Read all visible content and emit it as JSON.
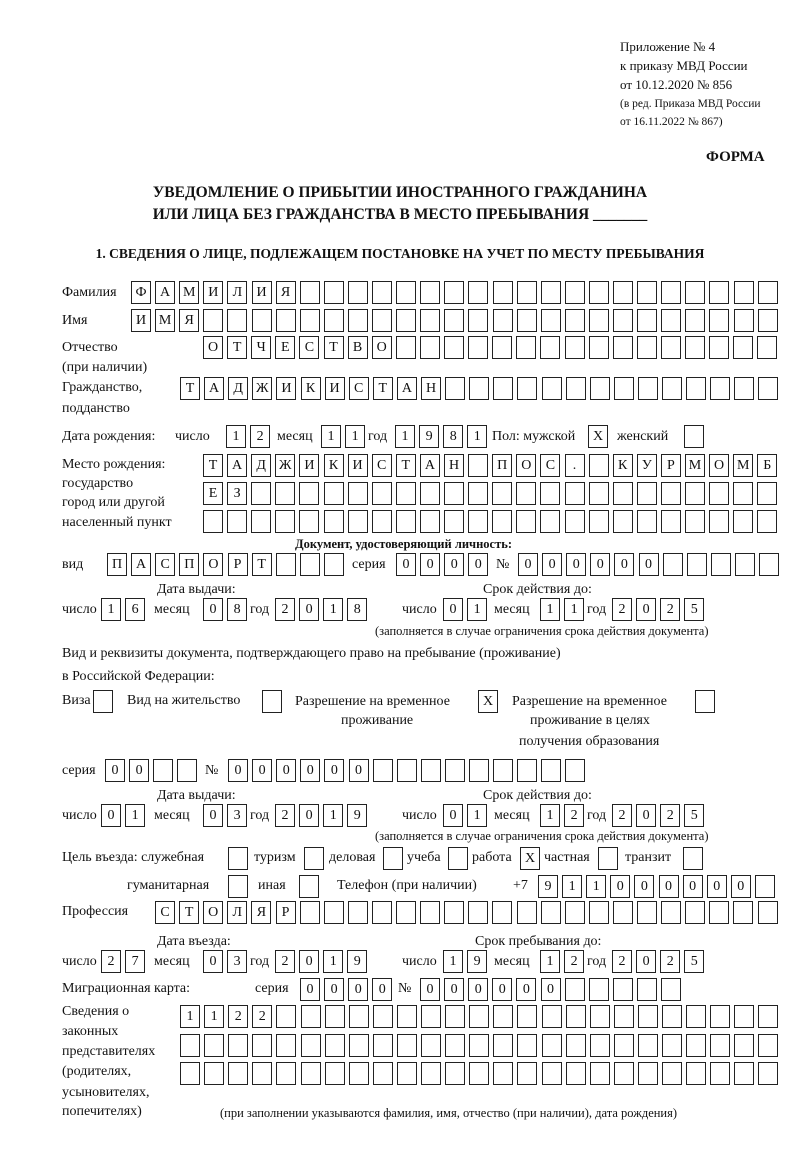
{
  "header": {
    "line1": "Приложение № 4",
    "line2": "к приказу МВД России",
    "line3": "от 10.12.2020 № 856",
    "line4": "(в ред. Приказа МВД России",
    "line5": "от 16.11.2022 № 867)",
    "form_label": "ФОРМА"
  },
  "title": {
    "line1": "УВЕДОМЛЕНИЕ О ПРИБЫТИИ ИНОСТРАННОГО ГРАЖДАНИНА",
    "line2": "ИЛИ ЛИЦА БЕЗ ГРАЖДАНСТВА В МЕСТО ПРЕБЫВАНИЯ _______"
  },
  "section1": {
    "heading": "1. СВЕДЕНИЯ О ЛИЦЕ, ПОДЛЕЖАЩЕМ ПОСТАНОВКЕ НА УЧЕТ ПО МЕСТУ ПРЕБЫВАНИЯ",
    "surname": {
      "label": "Фамилия",
      "value": "ФАМИЛИЯ"
    },
    "name": {
      "label": "Имя",
      "value": "ИМЯ"
    },
    "patronymic": {
      "label": "Отчество",
      "label2": "(при наличии)",
      "value": "ОТЧЕСТВО"
    },
    "citizenship": {
      "label": "Гражданство,",
      "label2": "подданство",
      "value": "ТАДЖИКИСТАН"
    },
    "birth_date": {
      "label": "Дата рождения:",
      "day_label": "число",
      "day": "12",
      "month_label": "месяц",
      "month": "11",
      "year_label": "год",
      "year": "1981"
    },
    "sex": {
      "label": "Пол: мужской",
      "male": "X",
      "female_label": "женский",
      "female": ""
    },
    "birth_place": {
      "label1": "Место рождения:",
      "label2": "государство",
      "label3": "город или другой",
      "label4": "населенный пункт",
      "row1": "ТАДЖИКИСТАН ПОС. КУРМОМБ",
      "row2": "ЕЗ",
      "row3": ""
    },
    "id_document": {
      "heading": "Документ, удостоверяющий личность:",
      "type_label": "вид",
      "type": "ПАСПОРТ",
      "series_label": "серия",
      "series": "0000",
      "number_label": "№",
      "number": "000000",
      "issue_label": "Дата выдачи:",
      "issue": {
        "day_label": "число",
        "day": "16",
        "month_label": "месяц",
        "month": "08",
        "year_label": "год",
        "year": "2018"
      },
      "valid_label": "Срок действия до:",
      "valid": {
        "day_label": "число",
        "day": "01",
        "month_label": "месяц",
        "month": "11",
        "year_label": "год",
        "year": "2025"
      },
      "note": "(заполняется в случае ограничения срока действия документа)"
    },
    "residence_document": {
      "label1": "Вид и реквизиты документа, подтверждающего право на пребывание (проживание)",
      "label2": "в Российской Федерации:",
      "visa_label": "Виза",
      "visa": "",
      "residence_permit_label": "Вид на жительство",
      "residence_permit": "",
      "temp_permit_label1": "Разрешение на временное",
      "temp_permit_label2": "проживание",
      "temp_permit": "X",
      "edu_permit_label1": "Разрешение на временное",
      "edu_permit_label2": "проживание в целях",
      "edu_permit_label3": "получения образования",
      "edu_permit": "",
      "series_label": "серия",
      "series": "00",
      "number_label": "№",
      "number": "000000",
      "issue_label": "Дата выдачи:",
      "issue": {
        "day_label": "число",
        "day": "01",
        "month_label": "месяц",
        "month": "03",
        "year_label": "год",
        "year": "2019"
      },
      "valid_label": "Срок действия до:",
      "valid": {
        "day_label": "число",
        "day": "01",
        "month_label": "месяц",
        "month": "12",
        "year_label": "год",
        "year": "2025"
      },
      "note": "(заполняется в случае ограничения срока действия документа)"
    },
    "purpose": {
      "label": "Цель въезда: служебная",
      "official": "",
      "tourism_label": "туризм",
      "tourism": "",
      "business_label": "деловая",
      "business": "",
      "study_label": "учеба",
      "study": "",
      "work_label": "работа",
      "work": "X",
      "private_label": "частная",
      "private": "",
      "transit_label": "транзит",
      "transit": "",
      "humanitarian_label": "гуманитарная",
      "humanitarian": "",
      "other_label": "иная",
      "other": ""
    },
    "phone": {
      "label": "Телефон (при наличии)",
      "prefix": "+7",
      "value": "911000000"
    },
    "profession": {
      "label": "Профессия",
      "value": "СТОЛЯР"
    },
    "entry": {
      "label": "Дата въезда:",
      "day_label": "число",
      "day": "27",
      "month_label": "месяц",
      "month": "03",
      "year_label": "год",
      "year": "2019"
    },
    "stay_until": {
      "label": "Срок пребывания до:",
      "day_label": "число",
      "day": "19",
      "month_label": "месяц",
      "month": "12",
      "year_label": "год",
      "year": "2025"
    },
    "migration_card": {
      "label": "Миграционная карта:",
      "series_label": "серия",
      "series": "0000",
      "number_label": "№",
      "number": "000000"
    },
    "legal_reps": {
      "label1": "Сведения о",
      "label2": "законных",
      "label3": "представителях",
      "label4": "(родителях,",
      "label5": "усыновителях,",
      "label6": "попечителях)",
      "row1": "1122",
      "row2": "",
      "row3": "",
      "note": "(при заполнении указываются фамилия, имя, отчество (при наличии), дата рождения)"
    }
  }
}
